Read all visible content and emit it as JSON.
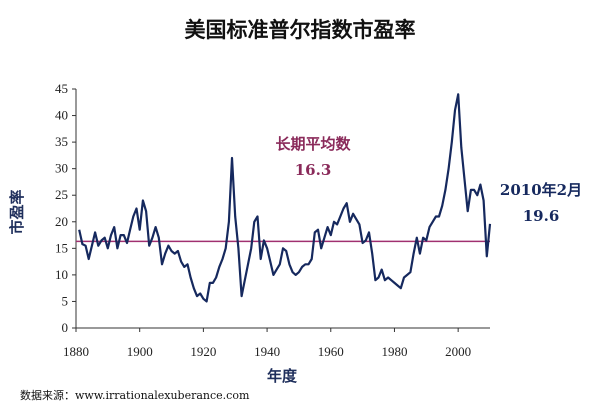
{
  "chart_data": {
    "type": "line",
    "title": "美国标准普尔指数市盈率",
    "xlabel": "年度",
    "ylabel": "市盈率",
    "xlim": [
      1880,
      2010
    ],
    "ylim": [
      0,
      45
    ],
    "xticks": [
      "1880",
      "1900",
      "1920",
      "1940",
      "1960",
      "1980",
      "2000"
    ],
    "yticks": [
      "0",
      "5",
      "10",
      "15",
      "20",
      "25",
      "30",
      "35",
      "40",
      "45"
    ],
    "grid": false,
    "mean_line": {
      "value": 16.3,
      "label_line1": "长期平均数",
      "label_line2": "16.3",
      "color": "#a03070"
    },
    "latest": {
      "label_line1": "2010年2月",
      "label_line2": "19.6"
    },
    "source": "数据来源：www.irrationalexuberance.com",
    "series_color": "#16295e",
    "series": [
      {
        "x": [
          1881,
          1882,
          1883,
          1884,
          1885,
          1886,
          1887,
          1888,
          1889,
          1890,
          1891,
          1892,
          1893,
          1894,
          1895,
          1896,
          1897,
          1898,
          1899,
          1900,
          1901,
          1902,
          1903,
          1904,
          1905,
          1906,
          1907,
          1908,
          1909,
          1910,
          1911,
          1912,
          1913,
          1914,
          1915,
          1916,
          1917,
          1918,
          1919,
          1920,
          1921,
          1922,
          1923,
          1924,
          1925,
          1926,
          1927,
          1928,
          1929,
          1930,
          1931,
          1932,
          1933,
          1934,
          1935,
          1936,
          1937,
          1938,
          1939,
          1940,
          1941,
          1942,
          1943,
          1944,
          1945,
          1946,
          1947,
          1948,
          1949,
          1950,
          1951,
          1952,
          1953,
          1954,
          1955,
          1956,
          1957,
          1958,
          1959,
          1960,
          1961,
          1962,
          1963,
          1964,
          1965,
          1966,
          1967,
          1968,
          1969,
          1970,
          1971,
          1972,
          1973,
          1974,
          1975,
          1976,
          1977,
          1978,
          1979,
          1980,
          1981,
          1982,
          1983,
          1984,
          1985,
          1986,
          1987,
          1988,
          1989,
          1990,
          1991,
          1992,
          1993,
          1994,
          1995,
          1996,
          1997,
          1998,
          1999,
          2000,
          2001,
          2002,
          2003,
          2004,
          2005,
          2006,
          2007,
          2008,
          2009,
          2010
        ],
        "y": [
          18.5,
          15.8,
          15.5,
          13.0,
          15.5,
          18.0,
          15.5,
          16.5,
          17.0,
          15.0,
          17.5,
          19.0,
          15.0,
          17.5,
          17.5,
          16.0,
          18.5,
          21.0,
          22.5,
          18.5,
          24.0,
          22.0,
          15.5,
          17.0,
          19.0,
          17.0,
          12.0,
          14.0,
          15.5,
          14.5,
          14.0,
          14.5,
          12.5,
          11.5,
          12.0,
          9.5,
          7.5,
          6.0,
          6.5,
          5.5,
          5.0,
          8.5,
          8.5,
          9.5,
          11.5,
          13.0,
          15.0,
          20.0,
          32.0,
          21.0,
          15.0,
          6.0,
          9.0,
          12.0,
          15.0,
          20.0,
          21.0,
          13.0,
          16.5,
          15.0,
          12.5,
          10.0,
          11.0,
          12.0,
          15.0,
          14.5,
          12.0,
          10.5,
          10.0,
          10.5,
          11.5,
          12.0,
          12.0,
          13.0,
          18.0,
          18.5,
          15.0,
          17.0,
          19.0,
          17.5,
          20.0,
          19.5,
          21.0,
          22.5,
          23.5,
          20.0,
          21.5,
          20.5,
          19.5,
          16.0,
          16.5,
          18.0,
          14.0,
          9.0,
          9.5,
          11.0,
          9.0,
          9.5,
          9.0,
          8.5,
          8.0,
          7.5,
          9.5,
          10.0,
          10.5,
          14.0,
          17.0,
          14.0,
          17.0,
          16.5,
          19.0,
          20.0,
          21.0,
          21.0,
          23.0,
          26.0,
          30.0,
          35.0,
          41.0,
          44.0,
          34.0,
          28.0,
          22.0,
          26.0,
          26.0,
          25.0,
          27.0,
          24.0,
          13.5,
          19.6
        ]
      }
    ]
  }
}
